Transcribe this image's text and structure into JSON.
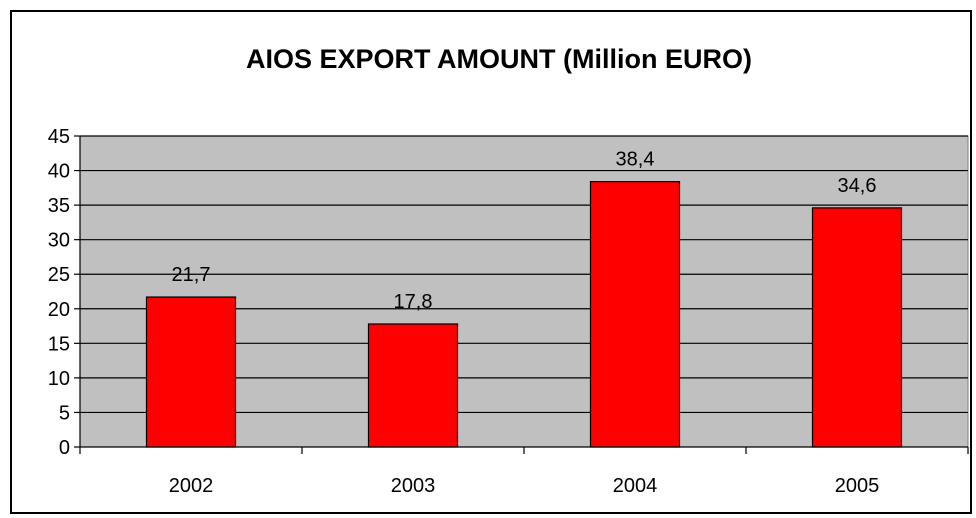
{
  "chart_data": {
    "type": "bar",
    "title": "AIOS EXPORT AMOUNT (Million EURO)",
    "categories": [
      "2002",
      "2003",
      "2004",
      "2005"
    ],
    "values": [
      21.7,
      17.8,
      38.4,
      34.6
    ],
    "value_labels": [
      "21,7",
      "17,8",
      "38,4",
      "34,6"
    ],
    "ylim": [
      0,
      45
    ],
    "yticks": [
      0,
      5,
      10,
      15,
      20,
      25,
      30,
      35,
      40,
      45
    ],
    "grid": true,
    "legend": "none",
    "colors": {
      "bar": "#ff0000",
      "plot_background": "#c0c0c0",
      "grid": "#000000"
    }
  }
}
